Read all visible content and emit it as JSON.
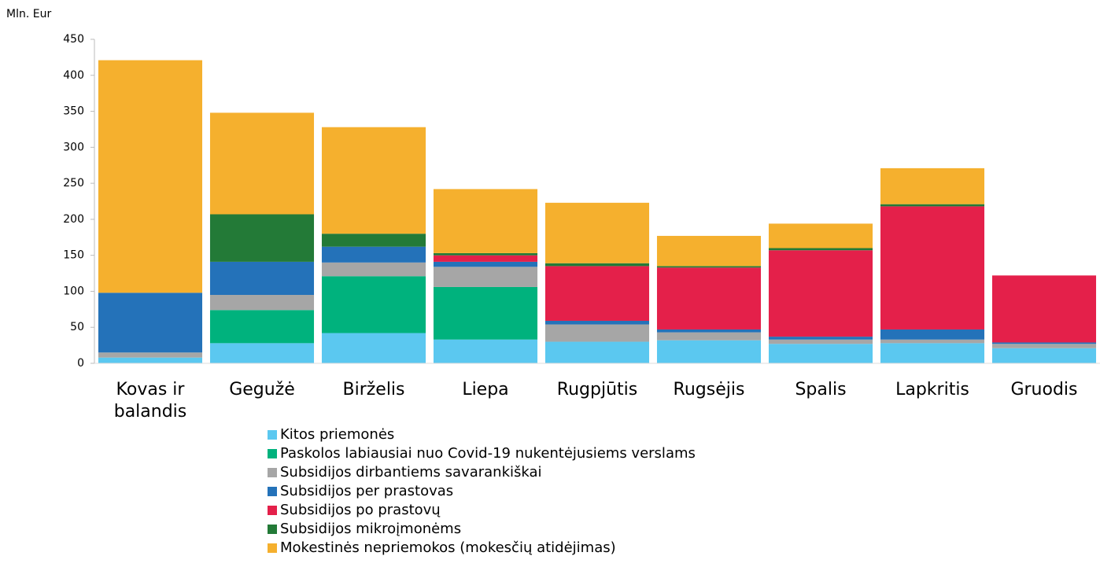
{
  "chart_data": {
    "type": "stacked_bar",
    "y_axis_label": "Mln. Eur",
    "categories": [
      "Kovas ir balandis",
      "Gegužė",
      "Birželis",
      "Liepa",
      "Rugpjūtis",
      "Rugsėjis",
      "Spalis",
      "Lapkritis",
      "Gruodis"
    ],
    "series": [
      {
        "name": "Kitos priemonės",
        "color": "#5bc8f0",
        "values": [
          8,
          28,
          42,
          33,
          30,
          32,
          27,
          28,
          21
        ]
      },
      {
        "name": "Paskolos labiausiai nuo Covid-19 nukentėjusiems verslams",
        "color": "#00b27d",
        "values": [
          0,
          46,
          79,
          73,
          0,
          0,
          0,
          0,
          0
        ]
      },
      {
        "name": "Subsidijos dirbantiems savarankiškai",
        "color": "#a6a6a6",
        "values": [
          7,
          21,
          19,
          28,
          24,
          11,
          6,
          5,
          6
        ]
      },
      {
        "name": "Subsidijos per prastovas",
        "color": "#2472b9",
        "values": [
          83,
          46,
          22,
          7,
          5,
          4,
          4,
          14,
          2
        ]
      },
      {
        "name": "Subsidijos po prastovų",
        "color": "#e4204a",
        "values": [
          0,
          0,
          0,
          9,
          76,
          86,
          120,
          171,
          93
        ]
      },
      {
        "name": "Subsidijos mikroįmonėms",
        "color": "#237a37",
        "values": [
          0,
          66,
          18,
          3,
          4,
          2,
          3,
          3,
          0
        ]
      },
      {
        "name": "Mokestinės nepriemokos (mokesčių atidėjimas)",
        "color": "#f5b02e",
        "values": [
          323,
          141,
          148,
          89,
          84,
          42,
          34,
          50,
          0
        ]
      }
    ],
    "ylim": [
      0,
      450
    ],
    "yticks": [
      0,
      50,
      100,
      150,
      200,
      250,
      300,
      350,
      400,
      450
    ]
  }
}
